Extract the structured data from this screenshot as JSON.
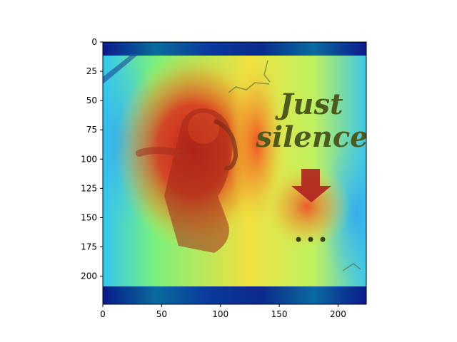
{
  "image": {
    "poster_text": [
      "Just",
      "silence"
    ],
    "overlay": "heatmap-jet",
    "colors": {
      "border_dark_blue": "#0a1a8c",
      "poster_text": "#4d5a1e",
      "arrow": "#b02020",
      "dots": "#3a4020"
    }
  },
  "axes": {
    "x_ticks": [
      "0",
      "50",
      "100",
      "150",
      "200"
    ],
    "y_ticks": [
      "0",
      "25",
      "50",
      "75",
      "100",
      "125",
      "150",
      "175",
      "200"
    ],
    "xlim": [
      0,
      224
    ],
    "ylim": [
      224,
      0
    ]
  }
}
